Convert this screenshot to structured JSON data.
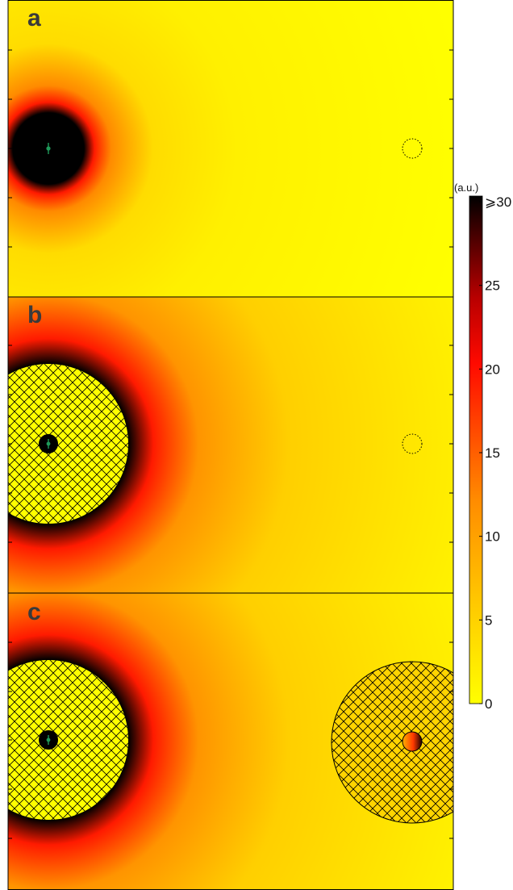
{
  "panels": [
    {
      "label": "a",
      "right_inclusion": "dotted"
    },
    {
      "label": "b",
      "right_inclusion": "dotted"
    },
    {
      "label": "c",
      "right_inclusion": "cloaked"
    }
  ],
  "colorbar": {
    "units": "(a.u.)",
    "max_label": "⩾30",
    "ticks": [
      "25",
      "20",
      "15",
      "10",
      "5",
      "0"
    ],
    "min": 0,
    "max": 30
  },
  "colors": {
    "field_low": "#ffff00",
    "field_mid": "#ff9900",
    "field_high_red": "#ff1a00",
    "field_dark": "#000000",
    "source_marker": "#1f9a5a",
    "frame": "#000000"
  }
}
